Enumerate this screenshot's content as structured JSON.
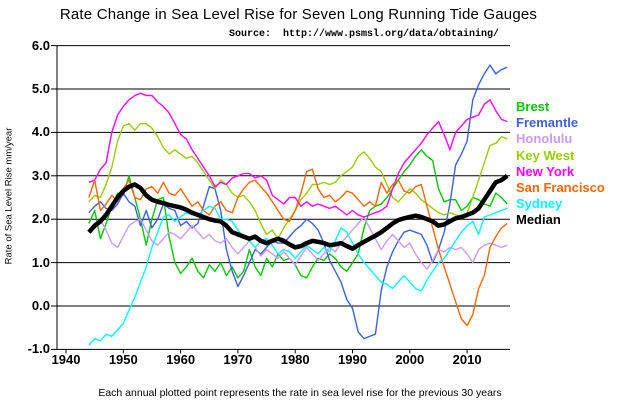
{
  "page": {
    "title": "Rate Change in Sea Level Rise for Seven Long Running Tide Gauges",
    "source_line": "Source:  http://www.psmsl.org/data/obtaining/",
    "caption": "Each annual plotted point represents the rate in sea level rise for the previous 30 years"
  },
  "chart_data": {
    "type": "line",
    "title": "Rate Change in Sea Level Rise for Seven Long Running Tide Gauges",
    "source_note": "Source:  http://www.psmsl.org/data/obtaining/",
    "caption": "Each annual plotted point represents the rate in sea level rise for the previous 30 years",
    "xlabel": "",
    "ylabel": "Rate of Sea Level Rise mm/year",
    "xlim": [
      1938.4,
      2017.5
    ],
    "ylim": [
      -1.0,
      6.0
    ],
    "grid": "horizontal",
    "legend_position": "right",
    "x_ticks": [
      1940,
      1950,
      1960,
      1970,
      1980,
      1990,
      2000,
      2010
    ],
    "y_ticks": [
      6.0,
      5.0,
      4.0,
      3.0,
      2.0,
      1.0,
      0.0,
      -1.0
    ],
    "x": [
      1944,
      1945,
      1946,
      1947,
      1948,
      1949,
      1950,
      1951,
      1952,
      1953,
      1954,
      1955,
      1956,
      1957,
      1958,
      1959,
      1960,
      1961,
      1962,
      1963,
      1964,
      1965,
      1966,
      1967,
      1968,
      1969,
      1970,
      1971,
      1972,
      1973,
      1974,
      1975,
      1976,
      1977,
      1978,
      1979,
      1980,
      1981,
      1982,
      1983,
      1984,
      1985,
      1986,
      1987,
      1988,
      1989,
      1990,
      1991,
      1992,
      1993,
      1994,
      1995,
      1996,
      1997,
      1998,
      1999,
      2000,
      2001,
      2002,
      2003,
      2004,
      2005,
      2006,
      2007,
      2008,
      2009,
      2010,
      2011,
      2012,
      2013,
      2014,
      2015,
      2016,
      2017
    ],
    "series": [
      {
        "name": "Brest",
        "color": "#00C800",
        "width": 1.4,
        "values": [
          1.9,
          2.2,
          1.55,
          1.9,
          2.3,
          2.6,
          2.55,
          3.0,
          2.5,
          2.0,
          1.4,
          2.0,
          2.45,
          2.5,
          1.6,
          1.0,
          0.75,
          0.9,
          1.1,
          0.8,
          0.65,
          0.95,
          0.8,
          1.0,
          0.7,
          0.9,
          0.65,
          0.8,
          1.3,
          0.9,
          0.7,
          1.1,
          0.9,
          1.2,
          1.05,
          1.1,
          0.95,
          0.7,
          0.65,
          0.9,
          1.1,
          1.05,
          1.2,
          1.1,
          0.9,
          0.8,
          1.0,
          1.2,
          1.8,
          2.2,
          2.3,
          2.35,
          2.5,
          2.7,
          2.9,
          3.1,
          3.25,
          3.45,
          3.6,
          3.45,
          3.35,
          2.7,
          2.4,
          2.45,
          2.45,
          2.2,
          2.3,
          2.5,
          2.45,
          2.35,
          2.3,
          2.6,
          2.5,
          2.35
        ]
      },
      {
        "name": "Fremantle",
        "color": "#3B5FE6",
        "width": 1.4,
        "values": [
          2.15,
          2.3,
          2.4,
          2.25,
          2.2,
          2.35,
          2.6,
          2.4,
          2.3,
          1.85,
          2.2,
          1.8,
          2.0,
          2.35,
          2.25,
          2.2,
          1.85,
          1.95,
          1.8,
          1.9,
          2.3,
          2.75,
          2.7,
          2.2,
          1.3,
          0.8,
          0.45,
          0.7,
          1.0,
          1.3,
          1.2,
          1.35,
          1.5,
          1.45,
          1.45,
          1.6,
          1.75,
          1.85,
          2.0,
          1.9,
          1.75,
          1.45,
          1.05,
          0.8,
          0.55,
          0.15,
          -0.05,
          -0.6,
          -0.75,
          -0.7,
          -0.65,
          0.35,
          0.9,
          1.25,
          1.5,
          1.7,
          1.75,
          1.7,
          1.65,
          1.4,
          1.0,
          1.3,
          1.7,
          2.35,
          3.25,
          3.5,
          3.8,
          4.75,
          5.1,
          5.35,
          5.55,
          5.35,
          5.45,
          5.5
        ]
      },
      {
        "name": "Honolulu",
        "color": "#CC99FF",
        "width": 1.4,
        "values": [
          1.7,
          1.9,
          2.0,
          1.75,
          1.45,
          1.35,
          1.6,
          1.85,
          1.95,
          2.0,
          1.75,
          1.5,
          1.4,
          1.55,
          1.7,
          1.65,
          1.55,
          1.7,
          1.85,
          1.7,
          1.55,
          1.65,
          1.5,
          1.45,
          1.55,
          1.35,
          1.2,
          1.35,
          1.5,
          1.35,
          1.15,
          1.3,
          1.2,
          1.1,
          1.25,
          1.1,
          0.95,
          1.15,
          1.35,
          1.2,
          1.05,
          1.2,
          1.35,
          1.25,
          1.45,
          1.6,
          1.75,
          1.9,
          2.05,
          1.8,
          1.55,
          1.3,
          1.5,
          1.65,
          1.5,
          1.35,
          1.45,
          1.2,
          1.0,
          0.85,
          1.05,
          1.3,
          1.25,
          1.35,
          1.3,
          1.35,
          1.2,
          1.0,
          1.3,
          1.4,
          1.45,
          1.4,
          1.35,
          1.4
        ]
      },
      {
        "name": "Key West",
        "color": "#99CC00",
        "width": 1.4,
        "values": [
          2.4,
          2.55,
          2.5,
          2.8,
          3.2,
          3.8,
          4.15,
          4.2,
          4.05,
          4.2,
          4.2,
          4.1,
          3.9,
          3.65,
          3.5,
          3.6,
          3.5,
          3.4,
          3.45,
          3.3,
          3.1,
          2.9,
          2.7,
          2.9,
          2.8,
          2.6,
          2.5,
          2.55,
          2.4,
          2.2,
          1.9,
          1.65,
          1.75,
          1.55,
          1.8,
          2.0,
          2.2,
          2.45,
          2.6,
          2.8,
          2.8,
          2.85,
          2.8,
          2.85,
          3.0,
          3.1,
          3.2,
          3.45,
          3.55,
          3.4,
          3.2,
          3.1,
          2.8,
          2.5,
          2.4,
          2.55,
          2.7,
          2.6,
          2.45,
          2.35,
          2.25,
          2.15,
          2.1,
          2.15,
          2.1,
          2.05,
          2.15,
          2.5,
          2.9,
          3.3,
          3.7,
          3.75,
          3.9,
          3.85
        ]
      },
      {
        "name": "New York",
        "color": "#FF00FF",
        "width": 1.4,
        "values": [
          2.85,
          2.9,
          3.15,
          3.3,
          4.0,
          4.4,
          4.6,
          4.75,
          4.85,
          4.9,
          4.85,
          4.85,
          4.7,
          4.6,
          4.45,
          4.2,
          3.95,
          3.85,
          3.6,
          3.4,
          3.2,
          3.0,
          2.75,
          2.85,
          2.8,
          2.95,
          3.0,
          3.05,
          3.05,
          2.95,
          3.0,
          2.9,
          2.55,
          2.45,
          2.35,
          2.5,
          2.5,
          2.3,
          2.4,
          2.3,
          2.35,
          2.3,
          2.25,
          2.3,
          2.2,
          2.1,
          2.2,
          2.1,
          2.05,
          2.1,
          2.15,
          2.2,
          2.3,
          2.7,
          3.05,
          3.3,
          3.45,
          3.6,
          3.75,
          3.95,
          4.1,
          4.25,
          3.95,
          3.6,
          4.0,
          4.15,
          4.3,
          4.35,
          4.4,
          4.65,
          4.75,
          4.5,
          4.3,
          4.25
        ]
      },
      {
        "name": "San Francisco",
        "color": "#FF6600",
        "width": 1.4,
        "values": [
          2.5,
          2.9,
          2.2,
          2.35,
          2.55,
          2.4,
          2.7,
          2.9,
          2.5,
          2.45,
          2.7,
          2.75,
          2.6,
          2.85,
          2.6,
          2.55,
          2.7,
          2.5,
          2.3,
          2.4,
          2.2,
          2.1,
          2.3,
          2.4,
          2.2,
          2.15,
          2.5,
          2.7,
          2.85,
          2.9,
          2.75,
          2.6,
          2.4,
          2.2,
          2.0,
          1.95,
          2.2,
          2.6,
          3.1,
          3.15,
          2.7,
          2.5,
          2.55,
          2.4,
          2.5,
          2.65,
          2.6,
          2.45,
          2.3,
          2.4,
          2.3,
          2.85,
          2.6,
          2.8,
          2.9,
          2.65,
          2.6,
          2.75,
          2.8,
          2.3,
          1.8,
          1.3,
          0.9,
          0.5,
          0.1,
          -0.3,
          -0.45,
          -0.2,
          0.4,
          0.7,
          1.35,
          1.6,
          1.8,
          1.9
        ]
      },
      {
        "name": "Sydney",
        "color": "#00FFFF",
        "width": 1.4,
        "values": [
          -0.9,
          -0.75,
          -0.8,
          -0.65,
          -0.7,
          -0.55,
          -0.4,
          -0.1,
          0.2,
          0.55,
          0.9,
          1.35,
          1.7,
          2.05,
          2.1,
          1.95,
          2.05,
          2.15,
          2.1,
          2.1,
          2.2,
          2.3,
          2.25,
          2.0,
          2.0,
          1.95,
          1.75,
          1.6,
          1.5,
          1.35,
          1.5,
          1.55,
          1.4,
          1.2,
          1.3,
          1.25,
          1.1,
          1.25,
          1.4,
          1.3,
          1.2,
          1.35,
          1.25,
          1.5,
          1.8,
          1.7,
          1.45,
          1.2,
          1.0,
          0.85,
          0.7,
          0.55,
          0.5,
          0.4,
          0.55,
          0.7,
          0.55,
          0.4,
          0.35,
          0.6,
          0.8,
          1.0,
          1.1,
          1.3,
          1.5,
          1.7,
          1.85,
          1.95,
          1.65,
          2.05,
          2.1,
          2.15,
          2.2,
          2.25
        ]
      },
      {
        "name": "Median",
        "color": "#000000",
        "width": 4.5,
        "values": [
          1.7,
          1.85,
          1.95,
          2.1,
          2.3,
          2.5,
          2.65,
          2.75,
          2.8,
          2.72,
          2.55,
          2.45,
          2.4,
          2.37,
          2.33,
          2.3,
          2.27,
          2.22,
          2.15,
          2.1,
          2.05,
          2.0,
          1.97,
          1.95,
          1.85,
          1.7,
          1.65,
          1.6,
          1.55,
          1.6,
          1.5,
          1.45,
          1.5,
          1.55,
          1.5,
          1.42,
          1.35,
          1.38,
          1.45,
          1.5,
          1.48,
          1.45,
          1.4,
          1.42,
          1.45,
          1.38,
          1.32,
          1.4,
          1.48,
          1.55,
          1.62,
          1.7,
          1.8,
          1.9,
          1.98,
          2.02,
          2.05,
          2.08,
          2.05,
          2.0,
          1.95,
          1.85,
          1.88,
          1.95,
          2.02,
          2.05,
          2.1,
          2.15,
          2.25,
          2.45,
          2.65,
          2.85,
          2.9,
          3.0
        ]
      }
    ]
  }
}
